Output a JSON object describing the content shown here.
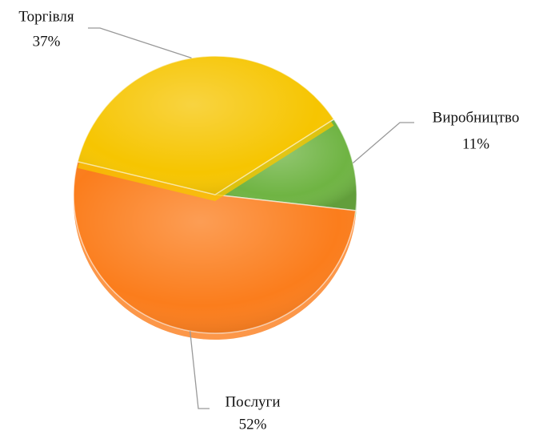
{
  "chart_data": {
    "type": "pie",
    "categories": [
      "Виробництво",
      "Послуги",
      "Торгівля"
    ],
    "values": [
      11,
      52,
      37
    ],
    "value_labels": [
      "11%",
      "52%",
      "37%"
    ],
    "colors": [
      "#6fb443",
      "#fb7d1c",
      "#f6c501"
    ]
  }
}
